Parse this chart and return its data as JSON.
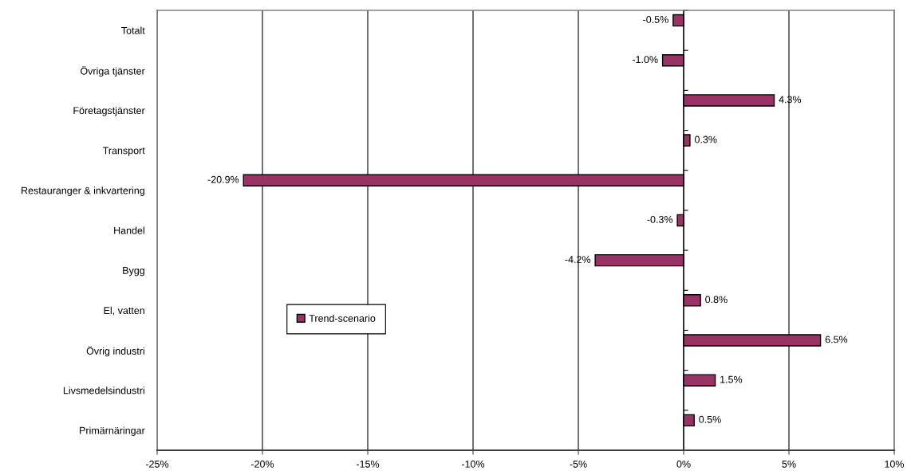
{
  "chart_data": {
    "type": "bar",
    "orientation": "horizontal",
    "categories": [
      "Totalt",
      "Övriga tjänster",
      "Företagstjänster",
      "Transport",
      "Restauranger & inkvartering",
      "Handel",
      "Bygg",
      "El, vatten",
      "Övrig industri",
      "Livsmedelsindustri",
      "Primärnäringar"
    ],
    "series": [
      {
        "name": "Trend-scenario",
        "color": "#993366",
        "values": [
          -0.5,
          -1.0,
          4.3,
          0.3,
          -20.9,
          -0.3,
          -4.2,
          0.8,
          6.5,
          1.5,
          0.5
        ],
        "value_labels": [
          "-0.5%",
          "-1.0%",
          "4.3%",
          "0.3%",
          "-20.9%",
          "-0.3%",
          "-4.2%",
          "0.8%",
          "6.5%",
          "1.5%",
          "0.5%"
        ]
      }
    ],
    "xlim": [
      -25,
      10
    ],
    "xticks": [
      {
        "value": -25,
        "label": "-25%"
      },
      {
        "value": -20,
        "label": "-20%"
      },
      {
        "value": -15,
        "label": "-15%"
      },
      {
        "value": -10,
        "label": "-10%"
      },
      {
        "value": -5,
        "label": "-5%"
      },
      {
        "value": 0,
        "label": "0%"
      },
      {
        "value": 5,
        "label": "5%"
      },
      {
        "value": 10,
        "label": "10%"
      }
    ],
    "grid": "x",
    "legend": "bottom left"
  }
}
